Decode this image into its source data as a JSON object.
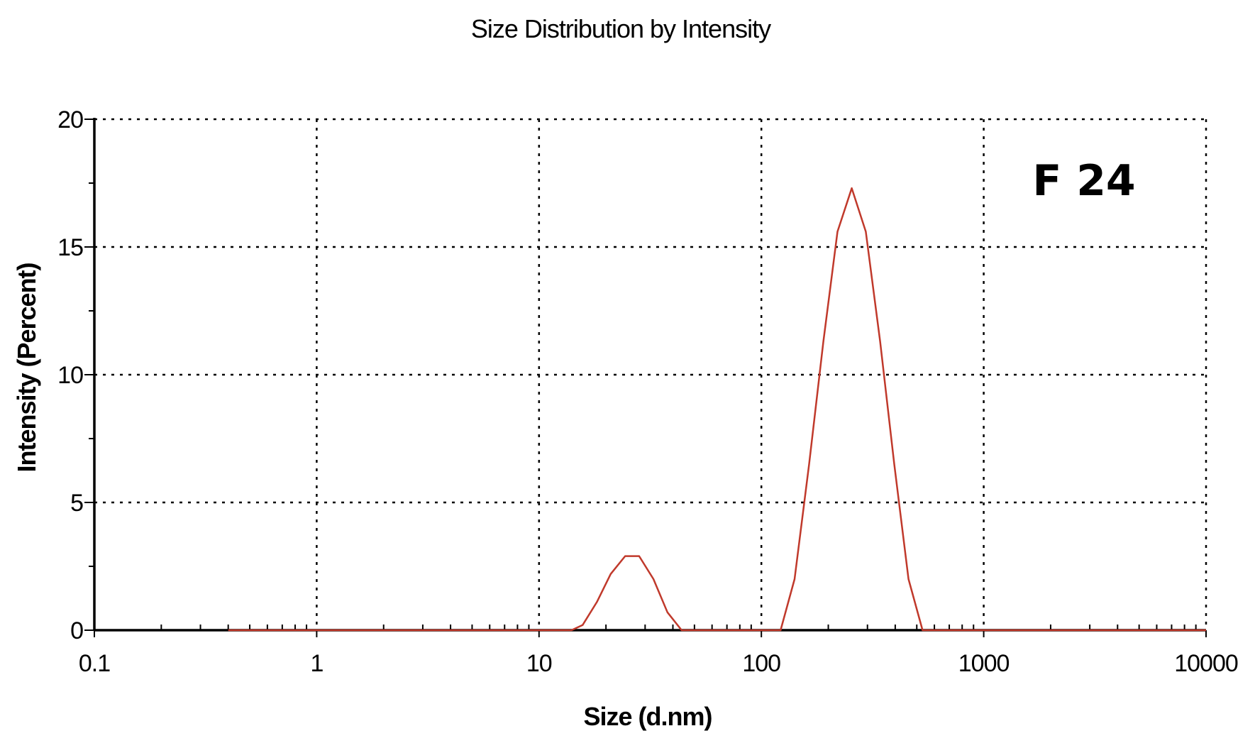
{
  "chart_data": {
    "type": "line",
    "title": "Size Distribution by Intensity",
    "xlabel": "Size (d.nm)",
    "ylabel": "Intensity (Percent)",
    "x_scale": "log",
    "xlim": [
      0.1,
      10000
    ],
    "ylim": [
      0,
      20
    ],
    "x_ticks": [
      0.1,
      1,
      10,
      100,
      1000,
      10000
    ],
    "x_tick_labels": [
      "0.1",
      "1",
      "10",
      "100",
      "1000",
      "10000"
    ],
    "y_ticks": [
      0,
      5,
      10,
      15,
      20
    ],
    "y_tick_labels": [
      "0",
      "5",
      "10",
      "15",
      "20"
    ],
    "grid": true,
    "annotation": "F 24",
    "series": [
      {
        "color": "#c0392b",
        "x": [
          0.4,
          1,
          5,
          10,
          14,
          15.7,
          18.2,
          21,
          24.4,
          28.2,
          32.7,
          37.8,
          43.8,
          50,
          100,
          122,
          141,
          164,
          190,
          220,
          255,
          295,
          342,
          396,
          459,
          531,
          600,
          1000,
          5000,
          10000
        ],
        "y": [
          0,
          0,
          0,
          0,
          0,
          0.2,
          1.1,
          2.2,
          2.9,
          2.9,
          2.0,
          0.7,
          0,
          0,
          0,
          0,
          2.0,
          6.5,
          11.3,
          15.6,
          17.3,
          15.6,
          11.3,
          6.5,
          2.0,
          0,
          0,
          0,
          0,
          0
        ]
      }
    ]
  }
}
